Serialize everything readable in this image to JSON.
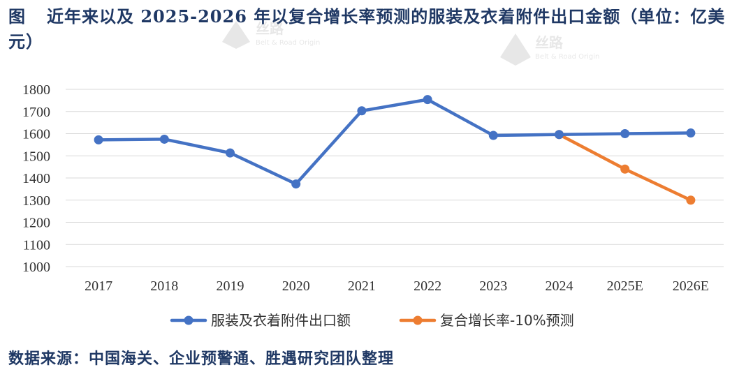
{
  "figure": {
    "label": "图",
    "title": "近年来以及 2025-2026 年以复合增长率预测的服装及衣着附件出口金额（单位：亿美元）"
  },
  "source_text": "数据来源：中国海关、企业预警通、胜遇研究团队整理",
  "watermark": {
    "text": "丝路",
    "subtext": "Belt & Road Origin"
  },
  "colors": {
    "series_blue": "#4472c4",
    "series_orange": "#ed7d31",
    "grid": "#d9d9d9",
    "title": "#1f3864"
  },
  "chart_data": {
    "type": "line",
    "title": "",
    "xlabel": "",
    "ylabel": "",
    "categories": [
      "2017",
      "2018",
      "2019",
      "2020",
      "2021",
      "2022",
      "2023",
      "2024",
      "2025E",
      "2026E"
    ],
    "ylim": [
      1000,
      1800
    ],
    "yticks": [
      1000,
      1100,
      1200,
      1300,
      1400,
      1500,
      1600,
      1700,
      1800
    ],
    "grid": true,
    "legend_position": "bottom",
    "series": [
      {
        "name": "服装及衣着附件出口额",
        "color": "#4472c4",
        "values": [
          1572,
          1575,
          1513,
          1373,
          1703,
          1754,
          1592,
          1596,
          1600,
          1603
        ]
      },
      {
        "name": "复合增长率-10%预测",
        "color": "#ed7d31",
        "values": [
          null,
          null,
          null,
          null,
          null,
          null,
          null,
          1596,
          1440,
          1300
        ]
      }
    ]
  }
}
